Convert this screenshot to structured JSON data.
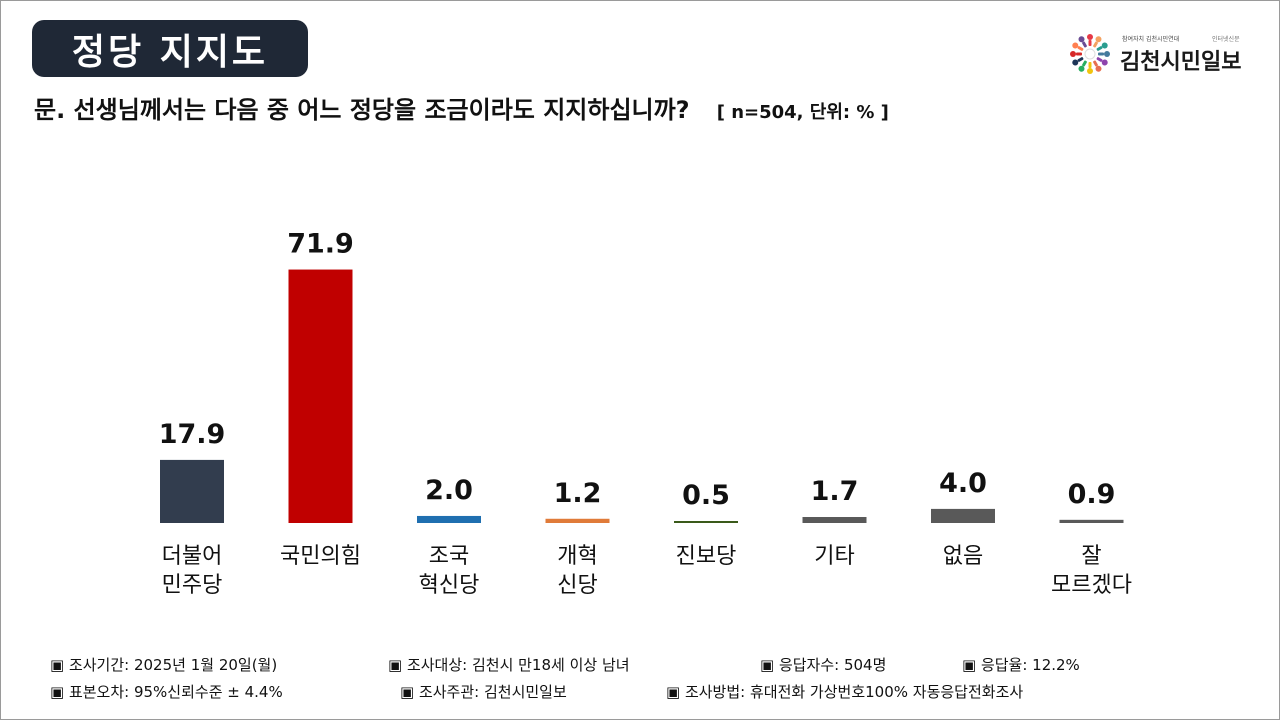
{
  "header": {
    "title": "정당 지지도",
    "question": "문. 선생님께서는 다음 중 어느 정당을 조금이라도 지지하십니까?",
    "meta": "[ n=504, 단위: % ]"
  },
  "logo": {
    "name": "김천시민일보",
    "tagline_left": "참여자치 김천시민연대",
    "tagline_right": "인터넷신문",
    "icon": "people-circle-logo-icon"
  },
  "chart_data": {
    "type": "bar",
    "title": "정당 지지도",
    "categories": [
      [
        "더불어",
        "민주당"
      ],
      [
        "국민의힘"
      ],
      [
        "조국",
        "혁신당"
      ],
      [
        "개혁",
        "신당"
      ],
      [
        "진보당"
      ],
      [
        "기타"
      ],
      [
        "없음"
      ],
      [
        "잘",
        "모르겠다"
      ]
    ],
    "values": [
      17.9,
      71.9,
      2.0,
      1.2,
      0.5,
      1.7,
      4.0,
      0.9
    ],
    "value_labels": [
      "17.9",
      "71.9",
      "2.0",
      "1.2",
      "0.5",
      "1.7",
      "4.0",
      "0.9"
    ],
    "colors": [
      "#323d4e",
      "#c00000",
      "#1f6fb0",
      "#e07b39",
      "#3a5a1a",
      "#595959",
      "#595959",
      "#595959"
    ],
    "unit": "%",
    "ylim": [
      0,
      80
    ],
    "grid": false,
    "legend": "none"
  },
  "footer": {
    "row1": [
      "▣ 조사기간: 2025년 1월 20일(월)",
      "▣ 조사대상: 김천시 만18세 이상 남녀",
      "▣ 응답자수: 504명",
      "▣ 응답율: 12.2%"
    ],
    "row2": [
      "▣ 표본오차: 95%신뢰수준 ± 4.4%",
      "▣ 조사주관: 김천시민일보",
      "▣ 조사방법: 휴대전화 가상번호100% 자동응답전화조사"
    ]
  }
}
